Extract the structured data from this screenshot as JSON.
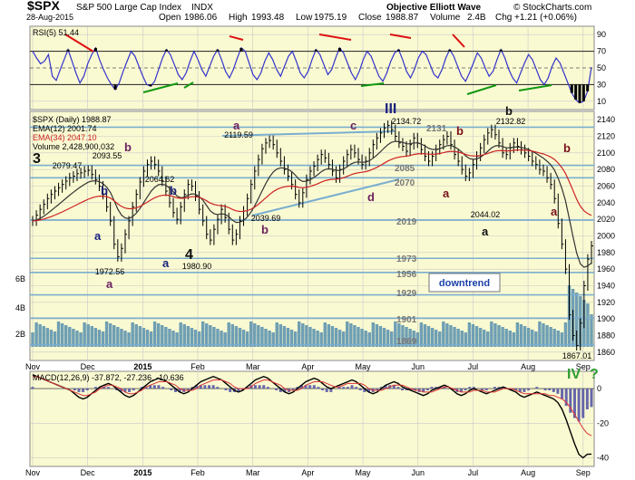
{
  "header": {
    "symbol": "$SPX",
    "name": "S&P 500 Large Cap Index",
    "exchange": "INDX",
    "date": "28-Aug-2015",
    "open_label": "Open",
    "open": "1986.06",
    "high_label": "High",
    "high": "1993.48",
    "low_label": "Low",
    "low": "1975.19",
    "close_label": "Close",
    "close": "1988.87",
    "volume_label": "Volume",
    "volume": "2.4B",
    "chg_label": "Chg",
    "chg": "+1.21 (+0.06%)",
    "source": "Objective Elliott Wave",
    "copyright": "© StockCharts.com"
  },
  "colors": {
    "panel_bg": "#fafad2",
    "grid": "#c8c8c8",
    "price_bar": "#000000",
    "ema12": "#333333",
    "ema34": "#cc2222",
    "volume": "#6f9fb3",
    "fib_line": "#7aaed0",
    "rsi_line": "#3333cc",
    "macd_hist": "#6666aa",
    "red_trend": "#dd1111",
    "green_trend": "#119911",
    "wave_purple": "#6b1f5f",
    "wave_navy": "#1a237e",
    "wave_maroon": "#7a0f1a",
    "wave_green": "#2e9b2e"
  },
  "chart_data": [
    {
      "type": "line",
      "panel": "rsi",
      "legend": "RSI(5) 51.44",
      "title": "",
      "ylim": [
        0,
        100
      ],
      "y_ticks": [
        10,
        30,
        50,
        70,
        90
      ],
      "overbought": 70,
      "oversold": 30,
      "series": [
        {
          "name": "RSI(5)",
          "values": [
            70,
            62,
            55,
            58,
            66,
            40,
            35,
            48,
            60,
            72,
            58,
            44,
            32,
            40,
            55,
            66,
            74,
            60,
            48,
            38,
            30,
            24,
            32,
            46,
            58,
            70,
            64,
            52,
            40,
            30,
            28,
            34,
            48,
            62,
            72,
            66,
            54,
            42,
            36,
            44,
            58,
            70,
            60,
            48,
            40,
            52,
            64,
            72,
            60,
            46,
            38,
            48,
            62,
            74,
            70,
            56,
            42,
            36,
            44,
            58,
            68,
            60,
            48,
            40,
            52,
            64,
            70,
            58,
            44,
            38,
            46,
            60,
            72,
            66,
            54,
            42,
            48,
            62,
            74,
            68,
            56,
            44,
            36,
            46,
            60,
            70,
            64,
            52,
            40,
            34,
            44,
            58,
            68,
            72,
            60,
            46,
            38,
            48,
            62,
            70,
            66,
            54,
            42,
            38,
            48,
            62,
            72,
            64,
            52,
            40,
            34,
            44,
            56,
            68,
            62,
            50,
            40,
            46,
            60,
            72,
            62,
            48,
            38,
            32,
            44,
            56,
            66,
            60,
            48,
            36,
            30,
            38,
            52,
            62,
            56,
            44,
            32,
            20,
            12,
            8,
            10,
            22,
            51
          ]
        }
      ]
    },
    {
      "type": "bar",
      "panel": "price",
      "title": "",
      "legend": [
        "$SPX (Daily) 1988.87",
        "EMA(12) 2001.74",
        "EMA(34) 2047.10",
        "Volume 2,428,900,032"
      ],
      "ylim": [
        1850,
        2150
      ],
      "y_ticks": [
        1860,
        1880,
        1900,
        1920,
        1940,
        1960,
        1980,
        2000,
        2020,
        2040,
        2060,
        2080,
        2100,
        2120,
        2140
      ],
      "volume_ticks": [
        "2B",
        "4B",
        "6B"
      ],
      "x_month_labels": [
        "Nov",
        "Dec",
        "2015",
        "Feb",
        "Mar",
        "Apr",
        "May",
        "Jun",
        "Jul",
        "Aug",
        "Sep"
      ],
      "closes": [
        2018,
        2025,
        2032,
        2038,
        2045,
        2050,
        2054,
        2058,
        2062,
        2066,
        2070,
        2072,
        2075,
        2076,
        2078,
        2079,
        2074,
        2068,
        2060,
        2050,
        2035,
        2018,
        1990,
        1975,
        1985,
        2002,
        2018,
        2035,
        2050,
        2065,
        2078,
        2086,
        2090,
        2086,
        2078,
        2066,
        2054,
        2040,
        2028,
        2020,
        2035,
        2050,
        2062,
        2060,
        2048,
        2032,
        2018,
        2002,
        1995,
        2008,
        2020,
        2032,
        2022,
        2008,
        1995,
        2002,
        2018,
        2030,
        2045,
        2062,
        2078,
        2092,
        2105,
        2112,
        2115,
        2110,
        2100,
        2090,
        2080,
        2072,
        2062,
        2050,
        2040,
        2052,
        2068,
        2078,
        2084,
        2092,
        2098,
        2094,
        2086,
        2078,
        2070,
        2080,
        2090,
        2098,
        2104,
        2100,
        2092,
        2086,
        2090,
        2100,
        2110,
        2118,
        2124,
        2130,
        2133,
        2128,
        2120,
        2112,
        2108,
        2102,
        2110,
        2118,
        2112,
        2104,
        2096,
        2090,
        2096,
        2104,
        2110,
        2116,
        2120,
        2110,
        2098,
        2090,
        2080,
        2072,
        2076,
        2086,
        2096,
        2106,
        2116,
        2124,
        2128,
        2122,
        2112,
        2100,
        2098,
        2106,
        2112,
        2108,
        2104,
        2100,
        2096,
        2090,
        2086,
        2080,
        2078,
        2070,
        2062,
        2045,
        2015,
        1990,
        1960,
        1905,
        1880,
        1868,
        1895,
        1940,
        1972,
        1988
      ],
      "ema12_last": 2001.74,
      "ema34_last": 2047.1,
      "volume_last": 2428900032,
      "horizontal_levels": [
        2131,
        2085,
        2070,
        2019,
        1973,
        1956,
        1929,
        1901,
        1869
      ],
      "price_labels": [
        "2134.72",
        "2132.82",
        "2119.59",
        "2079.47",
        "2093.55",
        "2064.62",
        "2039.69",
        "2044.02",
        "1972.56",
        "1980.90",
        "1867.01"
      ],
      "wave_labels": {
        "wave_3": "3",
        "wave_4": "4",
        "wave_iii": "III",
        "wave_iv": "IV",
        "a": "a",
        "b": "b",
        "c": "c",
        "d": "d",
        "question": "?"
      },
      "level_labels": [
        "2131",
        "2085",
        "2070",
        "2019",
        "1973",
        "1956",
        "1929",
        "1901",
        "1869"
      ],
      "annotation": "downtrend"
    },
    {
      "type": "line",
      "panel": "macd",
      "title": "",
      "legend": "MACD(12,26,9) -37.872, -27.236, -10.636",
      "ylim": [
        -45,
        10
      ],
      "y_ticks": [
        0,
        -20,
        -40
      ],
      "series": [
        {
          "name": "MACD",
          "values": [
            8,
            7,
            6,
            5,
            4,
            3,
            2,
            1,
            0,
            -1,
            -3,
            -5,
            -6,
            -5,
            -3,
            -1,
            1,
            2,
            3,
            2,
            0,
            -2,
            -4,
            -5,
            -4,
            -2,
            0,
            2,
            4,
            5,
            6,
            5,
            4,
            2,
            0,
            -2,
            -3,
            -2,
            0,
            2,
            4,
            5,
            6,
            7,
            6,
            5,
            3,
            1,
            -1,
            -2,
            -1,
            1,
            3,
            5,
            6,
            7,
            6,
            4,
            2,
            0,
            -2,
            -3,
            -2,
            0,
            2,
            4,
            5,
            6,
            5,
            3,
            1,
            0,
            1,
            2,
            3,
            4,
            5,
            4,
            2,
            0,
            -2,
            -3,
            -2,
            0,
            2,
            3,
            4,
            3,
            1,
            0,
            -1,
            -2,
            -3,
            -4,
            -3,
            -1,
            0,
            1,
            2,
            1,
            -1,
            -3,
            -4,
            -3,
            -1,
            0,
            -1,
            -2,
            -3,
            -2,
            -1,
            0,
            1,
            0,
            -1,
            -2,
            -4,
            -5,
            -4,
            -3,
            -2,
            -3,
            -4,
            -5,
            -6,
            -8,
            -12,
            -18,
            -25,
            -32,
            -38,
            -40,
            -38,
            -37.872
          ]
        },
        {
          "name": "Signal",
          "values": [
            7,
            7,
            6,
            5,
            4,
            3,
            2,
            1,
            0,
            -1,
            -2,
            -3,
            -4,
            -4,
            -3,
            -2,
            0,
            1,
            2,
            2,
            1,
            0,
            -2,
            -3,
            -3,
            -2,
            -1,
            1,
            2,
            3,
            4,
            4,
            4,
            3,
            2,
            0,
            -1,
            -1,
            -1,
            0,
            2,
            3,
            4,
            5,
            5,
            5,
            4,
            3,
            1,
            0,
            0,
            0,
            1,
            3,
            4,
            5,
            5,
            4,
            3,
            2,
            0,
            -1,
            -1,
            -1,
            0,
            2,
            3,
            4,
            4,
            4,
            3,
            2,
            1,
            1,
            2,
            3,
            3,
            3,
            3,
            2,
            0,
            -1,
            -1,
            -1,
            0,
            1,
            2,
            2,
            2,
            1,
            0,
            -1,
            -1,
            -2,
            -2,
            -2,
            -1,
            0,
            1,
            1,
            0,
            -1,
            -2,
            -2,
            -2,
            -1,
            -1,
            -1,
            -2,
            -2,
            -2,
            -1,
            0,
            0,
            0,
            -1,
            -2,
            -3,
            -3,
            -3,
            -3,
            -3,
            -3,
            -4,
            -4,
            -5,
            -6,
            -8,
            -11,
            -15,
            -19,
            -23,
            -26,
            -27.236
          ]
        }
      ]
    }
  ]
}
